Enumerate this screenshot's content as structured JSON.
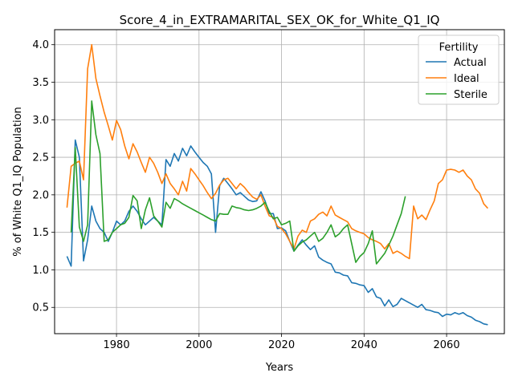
{
  "chart_data": {
    "type": "line",
    "title": "Score_4_in_EXTRAMARITAL_SEX_OK_for_White_Q1_IQ",
    "xlabel": "Years",
    "ylabel": "% of White Q1_IQ Population",
    "xlim": [
      1965,
      2074
    ],
    "ylim": [
      0.15,
      4.2
    ],
    "xticks": [
      1980,
      2000,
      2020,
      2040,
      2060
    ],
    "yticks": [
      0.5,
      1.0,
      1.5,
      2.0,
      2.5,
      3.0,
      3.5,
      4.0
    ],
    "ytick_labels": [
      "0.5",
      "1.0",
      "1.5",
      "2.0",
      "2.5",
      "3.0",
      "3.5",
      "4.0"
    ],
    "grid": true,
    "legend": {
      "title": "Fertility",
      "placement": "top-right"
    },
    "series": [
      {
        "name": "Actual",
        "color": "#1f77b4",
        "points": [
          [
            1968,
            1.18
          ],
          [
            1969,
            1.05
          ],
          [
            1970,
            2.73
          ],
          [
            1971,
            2.5
          ],
          [
            1972,
            1.12
          ],
          [
            1973,
            1.4
          ],
          [
            1974,
            1.85
          ],
          [
            1975,
            1.65
          ],
          [
            1976,
            1.55
          ],
          [
            1977,
            1.5
          ],
          [
            1978,
            1.38
          ],
          [
            1979,
            1.5
          ],
          [
            1980,
            1.65
          ],
          [
            1981,
            1.6
          ],
          [
            1982,
            1.65
          ],
          [
            1983,
            1.78
          ],
          [
            1984,
            1.85
          ],
          [
            1985,
            1.78
          ],
          [
            1986,
            1.68
          ],
          [
            1987,
            1.6
          ],
          [
            1988,
            1.65
          ],
          [
            1989,
            1.7
          ],
          [
            1990,
            1.65
          ],
          [
            1991,
            1.6
          ],
          [
            1992,
            2.47
          ],
          [
            1993,
            2.38
          ],
          [
            1994,
            2.55
          ],
          [
            1995,
            2.45
          ],
          [
            1996,
            2.62
          ],
          [
            1997,
            2.52
          ],
          [
            1998,
            2.65
          ],
          [
            1999,
            2.57
          ],
          [
            2000,
            2.5
          ],
          [
            2001,
            2.43
          ],
          [
            2002,
            2.38
          ],
          [
            2003,
            2.28
          ],
          [
            2004,
            1.5
          ],
          [
            2005,
            2.12
          ],
          [
            2006,
            2.22
          ],
          [
            2007,
            2.15
          ],
          [
            2008,
            2.08
          ],
          [
            2009,
            2.0
          ],
          [
            2010,
            2.03
          ],
          [
            2011,
            1.98
          ],
          [
            2012,
            1.93
          ],
          [
            2013,
            1.91
          ],
          [
            2014,
            1.92
          ],
          [
            2015,
            2.04
          ],
          [
            2016,
            1.92
          ],
          [
            2017,
            1.75
          ],
          [
            2018,
            1.75
          ],
          [
            2019,
            1.55
          ],
          [
            2020,
            1.56
          ],
          [
            2021,
            1.52
          ],
          [
            2022,
            1.38
          ],
          [
            2023,
            1.25
          ],
          [
            2024,
            1.33
          ],
          [
            2025,
            1.4
          ],
          [
            2026,
            1.33
          ],
          [
            2027,
            1.27
          ],
          [
            2028,
            1.32
          ],
          [
            2029,
            1.17
          ],
          [
            2030,
            1.13
          ],
          [
            2031,
            1.1
          ],
          [
            2032,
            1.08
          ],
          [
            2033,
            0.97
          ],
          [
            2034,
            0.96
          ],
          [
            2035,
            0.93
          ],
          [
            2036,
            0.92
          ],
          [
            2037,
            0.83
          ],
          [
            2038,
            0.82
          ],
          [
            2039,
            0.8
          ],
          [
            2040,
            0.79
          ],
          [
            2041,
            0.7
          ],
          [
            2042,
            0.75
          ],
          [
            2043,
            0.64
          ],
          [
            2044,
            0.62
          ],
          [
            2045,
            0.52
          ],
          [
            2046,
            0.6
          ],
          [
            2047,
            0.51
          ],
          [
            2048,
            0.54
          ],
          [
            2049,
            0.62
          ],
          [
            2050,
            0.59
          ],
          [
            2051,
            0.56
          ],
          [
            2052,
            0.53
          ],
          [
            2053,
            0.5
          ],
          [
            2054,
            0.54
          ],
          [
            2055,
            0.47
          ],
          [
            2056,
            0.46
          ],
          [
            2057,
            0.44
          ],
          [
            2058,
            0.43
          ],
          [
            2059,
            0.38
          ],
          [
            2060,
            0.41
          ],
          [
            2061,
            0.4
          ],
          [
            2062,
            0.43
          ],
          [
            2063,
            0.41
          ],
          [
            2064,
            0.43
          ],
          [
            2065,
            0.39
          ],
          [
            2066,
            0.37
          ],
          [
            2067,
            0.33
          ],
          [
            2068,
            0.31
          ],
          [
            2069,
            0.28
          ],
          [
            2070,
            0.27
          ]
        ]
      },
      {
        "name": "Ideal",
        "color": "#ff7f0e",
        "points": [
          [
            1968,
            1.83
          ],
          [
            1969,
            2.38
          ],
          [
            1970,
            2.42
          ],
          [
            1971,
            2.45
          ],
          [
            1972,
            2.2
          ],
          [
            1973,
            3.68
          ],
          [
            1974,
            4.0
          ],
          [
            1975,
            3.55
          ],
          [
            1976,
            3.32
          ],
          [
            1977,
            3.1
          ],
          [
            1978,
            2.92
          ],
          [
            1979,
            2.73
          ],
          [
            1980,
            2.99
          ],
          [
            1981,
            2.87
          ],
          [
            1982,
            2.65
          ],
          [
            1983,
            2.48
          ],
          [
            1984,
            2.68
          ],
          [
            1985,
            2.57
          ],
          [
            1986,
            2.43
          ],
          [
            1987,
            2.3
          ],
          [
            1988,
            2.5
          ],
          [
            1989,
            2.42
          ],
          [
            1990,
            2.3
          ],
          [
            1991,
            2.15
          ],
          [
            1992,
            2.28
          ],
          [
            1993,
            2.15
          ],
          [
            1994,
            2.08
          ],
          [
            1995,
            2.0
          ],
          [
            1996,
            2.18
          ],
          [
            1997,
            2.05
          ],
          [
            1998,
            2.35
          ],
          [
            1999,
            2.28
          ],
          [
            2000,
            2.2
          ],
          [
            2001,
            2.12
          ],
          [
            2002,
            2.03
          ],
          [
            2003,
            1.95
          ],
          [
            2004,
            2.02
          ],
          [
            2005,
            2.13
          ],
          [
            2006,
            2.2
          ],
          [
            2007,
            2.22
          ],
          [
            2008,
            2.15
          ],
          [
            2009,
            2.08
          ],
          [
            2010,
            2.15
          ],
          [
            2011,
            2.1
          ],
          [
            2012,
            2.03
          ],
          [
            2013,
            1.97
          ],
          [
            2014,
            1.94
          ],
          [
            2015,
            2.0
          ],
          [
            2016,
            1.85
          ],
          [
            2017,
            1.72
          ],
          [
            2018,
            1.7
          ],
          [
            2019,
            1.58
          ],
          [
            2020,
            1.55
          ],
          [
            2021,
            1.48
          ],
          [
            2022,
            1.38
          ],
          [
            2023,
            1.28
          ],
          [
            2024,
            1.45
          ],
          [
            2025,
            1.53
          ],
          [
            2026,
            1.5
          ],
          [
            2027,
            1.65
          ],
          [
            2028,
            1.68
          ],
          [
            2029,
            1.74
          ],
          [
            2030,
            1.77
          ],
          [
            2031,
            1.72
          ],
          [
            2032,
            1.85
          ],
          [
            2033,
            1.73
          ],
          [
            2034,
            1.7
          ],
          [
            2035,
            1.67
          ],
          [
            2036,
            1.64
          ],
          [
            2037,
            1.55
          ],
          [
            2038,
            1.52
          ],
          [
            2039,
            1.5
          ],
          [
            2040,
            1.48
          ],
          [
            2041,
            1.43
          ],
          [
            2042,
            1.4
          ],
          [
            2043,
            1.38
          ],
          [
            2044,
            1.35
          ],
          [
            2045,
            1.28
          ],
          [
            2046,
            1.35
          ],
          [
            2047,
            1.22
          ],
          [
            2048,
            1.25
          ],
          [
            2049,
            1.22
          ],
          [
            2050,
            1.18
          ],
          [
            2051,
            1.15
          ],
          [
            2052,
            1.85
          ],
          [
            2053,
            1.68
          ],
          [
            2054,
            1.73
          ],
          [
            2055,
            1.67
          ],
          [
            2056,
            1.8
          ],
          [
            2057,
            1.92
          ],
          [
            2058,
            2.15
          ],
          [
            2059,
            2.2
          ],
          [
            2060,
            2.33
          ],
          [
            2061,
            2.34
          ],
          [
            2062,
            2.33
          ],
          [
            2063,
            2.3
          ],
          [
            2064,
            2.33
          ],
          [
            2065,
            2.25
          ],
          [
            2066,
            2.2
          ],
          [
            2067,
            2.08
          ],
          [
            2068,
            2.02
          ],
          [
            2069,
            1.88
          ],
          [
            2070,
            1.82
          ]
        ]
      },
      {
        "name": "Sterile",
        "color": "#2ca02c",
        "points": [
          [
            1969,
            1.5
          ],
          [
            1970,
            2.63
          ],
          [
            1971,
            1.57
          ],
          [
            1972,
            1.38
          ],
          [
            1973,
            1.6
          ],
          [
            1974,
            3.25
          ],
          [
            1975,
            2.8
          ],
          [
            1976,
            2.55
          ],
          [
            1977,
            1.38
          ],
          [
            1978,
            1.4
          ],
          [
            1979,
            1.5
          ],
          [
            1980,
            1.55
          ],
          [
            1981,
            1.6
          ],
          [
            1982,
            1.62
          ],
          [
            1983,
            1.7
          ],
          [
            1984,
            1.99
          ],
          [
            1985,
            1.92
          ],
          [
            1986,
            1.55
          ],
          [
            1987,
            1.8
          ],
          [
            1988,
            1.96
          ],
          [
            1989,
            1.72
          ],
          [
            1990,
            1.65
          ],
          [
            1991,
            1.57
          ],
          [
            1992,
            1.9
          ],
          [
            1993,
            1.82
          ],
          [
            1994,
            1.95
          ],
          [
            1995,
            1.92
          ],
          [
            1996,
            1.88
          ],
          [
            1997,
            1.85
          ],
          [
            1998,
            1.82
          ],
          [
            1999,
            1.79
          ],
          [
            2000,
            1.76
          ],
          [
            2001,
            1.73
          ],
          [
            2002,
            1.7
          ],
          [
            2003,
            1.67
          ],
          [
            2004,
            1.65
          ],
          [
            2005,
            1.75
          ],
          [
            2006,
            1.74
          ],
          [
            2007,
            1.74
          ],
          [
            2008,
            1.85
          ],
          [
            2009,
            1.83
          ],
          [
            2010,
            1.82
          ],
          [
            2011,
            1.8
          ],
          [
            2012,
            1.79
          ],
          [
            2013,
            1.8
          ],
          [
            2014,
            1.82
          ],
          [
            2015,
            1.85
          ],
          [
            2016,
            1.9
          ],
          [
            2017,
            1.78
          ],
          [
            2018,
            1.68
          ],
          [
            2019,
            1.7
          ],
          [
            2020,
            1.6
          ],
          [
            2021,
            1.62
          ],
          [
            2022,
            1.65
          ],
          [
            2023,
            1.25
          ],
          [
            2024,
            1.32
          ],
          [
            2025,
            1.37
          ],
          [
            2026,
            1.4
          ],
          [
            2027,
            1.45
          ],
          [
            2028,
            1.5
          ],
          [
            2029,
            1.38
          ],
          [
            2030,
            1.42
          ],
          [
            2031,
            1.5
          ],
          [
            2032,
            1.6
          ],
          [
            2033,
            1.44
          ],
          [
            2034,
            1.48
          ],
          [
            2035,
            1.55
          ],
          [
            2036,
            1.6
          ],
          [
            2037,
            1.35
          ],
          [
            2038,
            1.1
          ],
          [
            2039,
            1.18
          ],
          [
            2040,
            1.23
          ],
          [
            2041,
            1.35
          ],
          [
            2042,
            1.52
          ],
          [
            2043,
            1.08
          ],
          [
            2044,
            1.15
          ],
          [
            2045,
            1.22
          ],
          [
            2046,
            1.33
          ],
          [
            2047,
            1.45
          ],
          [
            2048,
            1.6
          ],
          [
            2049,
            1.75
          ],
          [
            2050,
            1.98
          ]
        ]
      }
    ]
  }
}
